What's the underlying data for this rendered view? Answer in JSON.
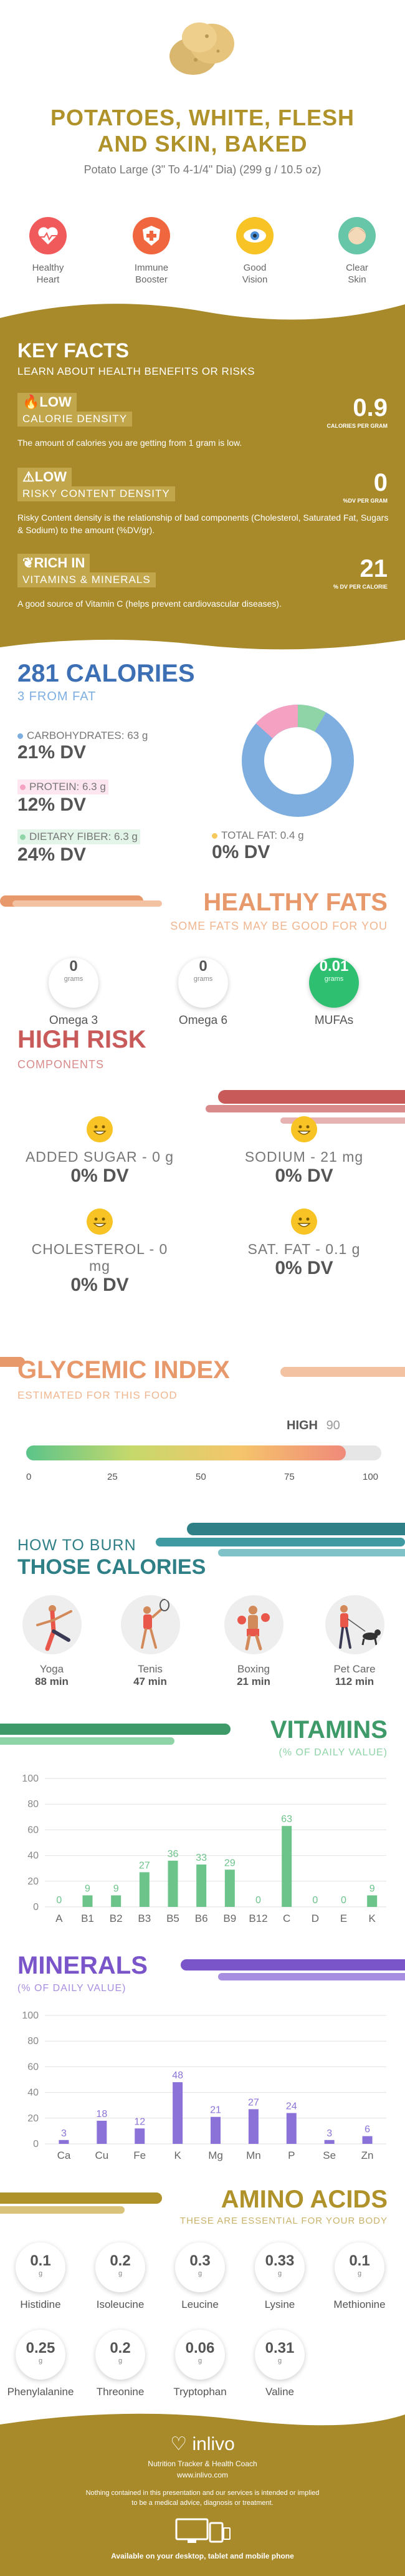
{
  "header": {
    "title_line1": "POTATOES, WHITE, FLESH",
    "title_line2": "AND SKIN, BAKED",
    "serving": "Potato Large (3\" To 4-1/4\" Dia) (299 g / 10.5 oz)"
  },
  "benefits": [
    {
      "line1": "Healthy",
      "line2": "Heart",
      "icon": "heart-pulse-icon",
      "color": "#f05a5a"
    },
    {
      "line1": "Immune",
      "line2": "Booster",
      "icon": "shield-plus-icon",
      "color": "#f0673f"
    },
    {
      "line1": "Good",
      "line2": "Vision",
      "icon": "eye-icon",
      "color": "#f7c325"
    },
    {
      "line1": "Clear",
      "line2": "Skin",
      "icon": "face-icon",
      "color": "#67c6a8"
    }
  ],
  "key_facts": {
    "title": "KEY FACTS",
    "subtitle": "LEARN ABOUT HEALTH BENEFITS OR RISKS",
    "facts": [
      {
        "level": "LOW",
        "label": "CALORIE DENSITY",
        "value": "0.9",
        "unit": "CALORIES PER GRAM",
        "text": "The amount of calories you are getting from 1 gram is low."
      },
      {
        "level": "LOW",
        "label": "RISKY CONTENT DENSITY",
        "value": "0",
        "unit": "%DV PER GRAM",
        "text": "Risky Content density is the relationship of bad components (Cholesterol, Saturated Fat, Sugars & Sodium) to the amount (%DV/gr)."
      },
      {
        "level": "RICH  IN",
        "label": "VITAMINS & MINERALS",
        "value": "21",
        "unit": "% DV PER CALORIE",
        "text": "A good source of Vitamin C (helps prevent cardiovascular diseases)."
      }
    ]
  },
  "calories": {
    "title": "281 CALORIES",
    "from_fat": "3 FROM FAT",
    "carbs": {
      "label": "CARBOHYDRATES: 63 g",
      "dv": "21% DV",
      "color": "#7eaee0"
    },
    "protein": {
      "label": "PROTEIN: 6.3 g",
      "dv": "12% DV",
      "color": "#f4a1c2"
    },
    "fiber": {
      "label": "DIETARY FIBER: 6.3 g",
      "dv": "24% DV",
      "color": "#8fd4a6"
    },
    "fat": {
      "label": "TOTAL FAT: 0.4 g",
      "dv": "0% DV",
      "color": "#f7c85c"
    }
  },
  "healthy_fats": {
    "title": "HEALTHY FATS",
    "subtitle": "SOME FATS MAY BE GOOD FOR YOU",
    "items": [
      {
        "value": "0",
        "unit": "grams",
        "name": "Omega 3"
      },
      {
        "value": "0",
        "unit": "grams",
        "name": "Omega 6"
      },
      {
        "value": "0.01",
        "unit": "grams",
        "name": "MUFAs"
      }
    ]
  },
  "high_risk": {
    "title": "HIGH RISK",
    "subtitle": "COMPONENTS",
    "items": [
      {
        "label": "ADDED SUGAR - 0 g",
        "dv": "0% DV"
      },
      {
        "label": "SODIUM - 21 mg",
        "dv": "0% DV"
      },
      {
        "label": "CHOLESTEROL - 0 mg",
        "dv": "0% DV"
      },
      {
        "label": "SAT. FAT - 0.1 g",
        "dv": "0% DV"
      }
    ]
  },
  "glycemic": {
    "title": "GLYCEMIC INDEX",
    "subtitle": "ESTIMATED FOR THIS FOOD",
    "level": "HIGH",
    "value": "90",
    "value_num": 90,
    "ticks": [
      "0",
      "25",
      "50",
      "75",
      "100"
    ]
  },
  "burn": {
    "title1": "HOW TO BURN",
    "title2": "THOSE CALORIES",
    "activities": [
      {
        "name": "Yoga",
        "minutes": "88 min",
        "icon": "yoga-icon"
      },
      {
        "name": "Tenis",
        "minutes": "47 min",
        "icon": "tennis-icon"
      },
      {
        "name": "Boxing",
        "minutes": "21 min",
        "icon": "boxing-icon"
      },
      {
        "name": "Pet Care",
        "minutes": "112 min",
        "icon": "dog-walk-icon"
      }
    ]
  },
  "vitamins": {
    "title": "VITAMINS",
    "subtitle": "(% OF DAILY VALUE)"
  },
  "minerals": {
    "title": "MINERALS",
    "subtitle": "(% OF DAILY VALUE)"
  },
  "chart_data": [
    {
      "type": "bar",
      "categories": [
        "A",
        "B1",
        "B2",
        "B3",
        "B5",
        "B6",
        "B9",
        "B12",
        "C",
        "D",
        "E",
        "K"
      ],
      "values": [
        0,
        9,
        9,
        27,
        36,
        33,
        29,
        0,
        63,
        0,
        0,
        9
      ],
      "title": "VITAMINS",
      "ylabel": "(% OF DAILY VALUE)",
      "ylim": [
        0,
        100
      ],
      "yticks": [
        "0",
        "20",
        "40",
        "60",
        "80",
        "100"
      ],
      "color": "#6cc48a"
    },
    {
      "type": "bar",
      "categories": [
        "Ca",
        "Cu",
        "Fe",
        "K",
        "Mg",
        "Mn",
        "P",
        "Se",
        "Zn"
      ],
      "values": [
        3,
        18,
        12,
        48,
        21,
        27,
        24,
        3,
        6
      ],
      "title": "MINERALS",
      "ylabel": "(% OF DAILY VALUE)",
      "ylim": [
        0,
        100
      ],
      "yticks": [
        "0",
        "20",
        "40",
        "60",
        "80",
        "100"
      ],
      "color": "#8b72d9"
    }
  ],
  "amino": {
    "title": "AMINO ACIDS",
    "subtitle": "THESE ARE ESSENTIAL FOR YOUR BODY",
    "items": [
      {
        "value": "0.1",
        "unit": "g",
        "name": "Histidine"
      },
      {
        "value": "0.2",
        "unit": "g",
        "name": "Isoleucine"
      },
      {
        "value": "0.3",
        "unit": "g",
        "name": "Leucine"
      },
      {
        "value": "0.33",
        "unit": "g",
        "name": "Lysine"
      },
      {
        "value": "0.1",
        "unit": "g",
        "name": "Methionine"
      },
      {
        "value": "0.25",
        "unit": "g",
        "name": "Phenylalanine"
      },
      {
        "value": "0.2",
        "unit": "g",
        "name": "Threonine"
      },
      {
        "value": "0.06",
        "unit": "g",
        "name": "Tryptophan"
      },
      {
        "value": "0.31",
        "unit": "g",
        "name": "Valine"
      }
    ]
  },
  "footer": {
    "brand": "inlivo",
    "tagline": "Nutrition Tracker & Health Coach",
    "url": "www.inlivo.com",
    "disclaimer1": "Nothing contained in this presentation and our services is intended or implied",
    "disclaimer2": "to be a medical advice, diagnosis or treatment.",
    "available": "Available on your desktop, tablet and mobile phone"
  },
  "colors": {
    "gold": "#b0922a",
    "blue": "#3c6fb4",
    "salmon": "#e8996b",
    "red_risk": "#c95a5a",
    "teal": "#2f7f86",
    "green": "#3f9a6a",
    "purple": "#7a55c9"
  }
}
